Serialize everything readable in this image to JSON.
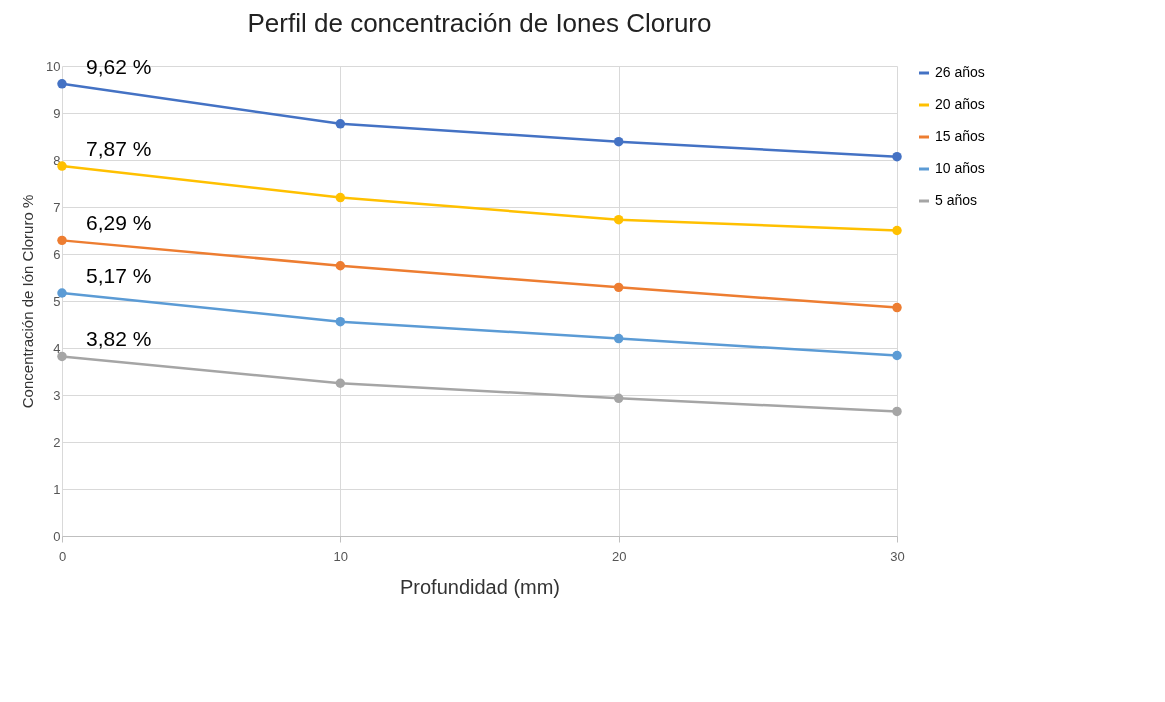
{
  "chart_data": {
    "type": "line",
    "title": "Perfil de concentración de Iones Cloruro",
    "xlabel": "Profundidad (mm)",
    "ylabel": "Concentración de Ión Cloruro %",
    "x": [
      0,
      10,
      20,
      30
    ],
    "series": [
      {
        "name": "26 años",
        "color": "#4472c4",
        "values": [
          9.62,
          8.77,
          8.39,
          8.07
        ],
        "value_labels": [
          "9,62 %",
          null,
          null,
          null
        ]
      },
      {
        "name": "20 años",
        "color": "#ffc000",
        "values": [
          7.87,
          7.2,
          6.73,
          6.5
        ],
        "value_labels": [
          "7,87 %",
          null,
          null,
          null
        ]
      },
      {
        "name": "15 años",
        "color": "#ed7d31",
        "values": [
          6.29,
          5.75,
          5.29,
          4.86
        ],
        "value_labels": [
          "6,29 %",
          null,
          null,
          null
        ]
      },
      {
        "name": "10 años",
        "color": "#5b9bd5",
        "values": [
          5.17,
          4.56,
          4.2,
          3.84
        ],
        "value_labels": [
          "5,17 %",
          null,
          null,
          null
        ]
      },
      {
        "name": "5 años",
        "color": "#a5a5a5",
        "values": [
          3.82,
          3.25,
          2.93,
          2.65
        ],
        "value_labels": [
          "3,82 %",
          null,
          null,
          null
        ]
      }
    ],
    "xlim": [
      0,
      30
    ],
    "xticks": [
      0,
      10,
      20,
      30
    ],
    "ylim": [
      0,
      10
    ],
    "yticks": [
      0,
      1,
      2,
      3,
      4,
      5,
      6,
      7,
      8,
      9,
      10
    ],
    "grid": true,
    "legend": "right",
    "marker": "circle",
    "line_style": "solid"
  }
}
